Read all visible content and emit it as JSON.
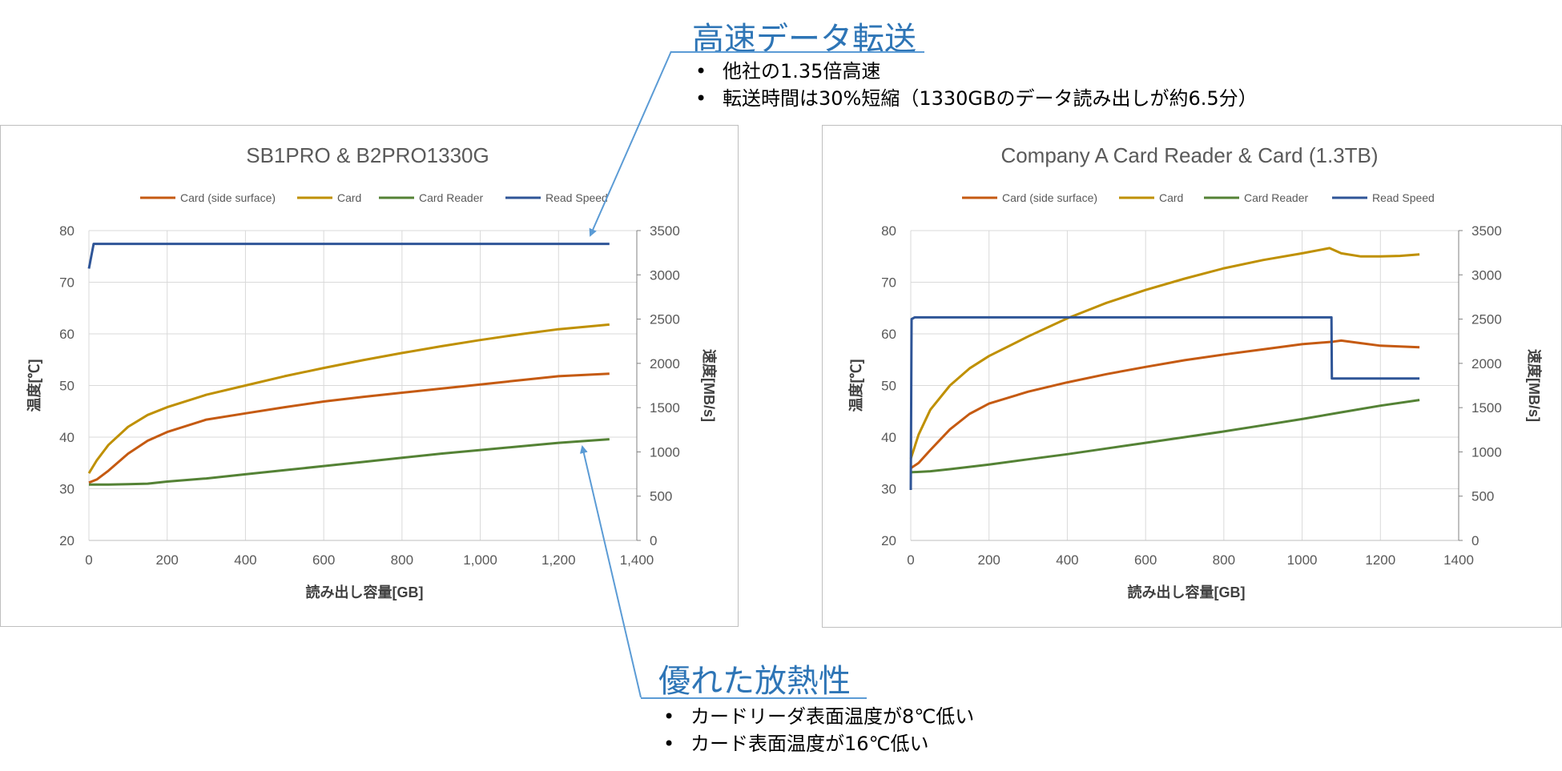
{
  "callouts": [
    {
      "title": "高速データ転送",
      "bullets": [
        "他社の1.35倍高速",
        "転送時間は30%短縮（1330GBのデータ読み出しが約6.5分）"
      ]
    },
    {
      "title": "優れた放熱性",
      "bullets": [
        "カードリーダ表面温度が8℃低い",
        "カード表面温度が16℃低い"
      ]
    }
  ],
  "colors": {
    "card_side": "#c55a11",
    "card": "#bf9000",
    "reader": "#548235",
    "speed": "#2f5597",
    "callout": "#2e75b6",
    "arrow": "#5b9bd5"
  },
  "chart_data": [
    {
      "type": "line",
      "title": "SB1PRO & B2PRO1330G",
      "xlabel": "読み出し容量[GB]",
      "ylabel": "温度[℃]",
      "y2label": "速度[MB/s]",
      "xlim": [
        0,
        1400
      ],
      "ylim": [
        20,
        80
      ],
      "y2lim": [
        0,
        3500
      ],
      "xticks": [
        "0",
        "200",
        "400",
        "600",
        "800",
        "1,000",
        "1,200",
        "1,400"
      ],
      "yticks": [
        "20",
        "30",
        "40",
        "50",
        "60",
        "70",
        "80"
      ],
      "y2ticks": [
        "0",
        "500",
        "1000",
        "1500",
        "2000",
        "2500",
        "3000",
        "3500"
      ],
      "grid": true,
      "legend": "top",
      "series": [
        {
          "name": "Card (side surface)",
          "axis": "left",
          "color": "#c55a11",
          "x": [
            0,
            20,
            50,
            100,
            150,
            200,
            300,
            400,
            500,
            600,
            700,
            800,
            900,
            1000,
            1100,
            1200,
            1330
          ],
          "y": [
            31.2,
            31.8,
            33.5,
            36.8,
            39.3,
            41.0,
            43.4,
            44.6,
            45.8,
            46.9,
            47.8,
            48.6,
            49.4,
            50.2,
            51.0,
            51.8,
            52.3
          ]
        },
        {
          "name": "Card",
          "axis": "left",
          "color": "#bf9000",
          "x": [
            0,
            20,
            50,
            100,
            150,
            200,
            300,
            400,
            500,
            600,
            700,
            800,
            900,
            1000,
            1100,
            1200,
            1330
          ],
          "y": [
            33.0,
            35.5,
            38.5,
            42.0,
            44.3,
            45.8,
            48.2,
            50.0,
            51.8,
            53.4,
            54.9,
            56.3,
            57.6,
            58.8,
            59.9,
            60.9,
            61.8
          ]
        },
        {
          "name": "Card Reader",
          "axis": "left",
          "color": "#548235",
          "x": [
            0,
            50,
            100,
            150,
            200,
            300,
            400,
            500,
            600,
            700,
            800,
            900,
            1000,
            1100,
            1200,
            1330
          ],
          "y": [
            30.8,
            30.8,
            30.9,
            31.0,
            31.4,
            32.0,
            32.8,
            33.6,
            34.4,
            35.2,
            36.0,
            36.8,
            37.5,
            38.2,
            38.9,
            39.6
          ]
        },
        {
          "name": "Read Speed",
          "axis": "right",
          "color": "#2f5597",
          "x": [
            0,
            12,
            20,
            1330
          ],
          "y": [
            3070,
            3350,
            3350,
            3350
          ]
        }
      ]
    },
    {
      "type": "line",
      "title": "Company A Card Reader & Card (1.3TB)",
      "xlabel": "読み出し容量[GB]",
      "ylabel": "温度[℃]",
      "y2label": "速度[MB/s]",
      "xlim": [
        0,
        1400
      ],
      "ylim": [
        20,
        80
      ],
      "y2lim": [
        0,
        3500
      ],
      "xticks": [
        "0",
        "200",
        "400",
        "600",
        "800",
        "1000",
        "1200",
        "1400"
      ],
      "yticks": [
        "20",
        "30",
        "40",
        "50",
        "60",
        "70",
        "80"
      ],
      "y2ticks": [
        "0",
        "500",
        "1000",
        "1500",
        "2000",
        "2500",
        "3000",
        "3500"
      ],
      "grid": true,
      "legend": "top",
      "series": [
        {
          "name": "Card (side surface)",
          "axis": "left",
          "color": "#c55a11",
          "x": [
            0,
            20,
            50,
            100,
            150,
            200,
            300,
            400,
            500,
            600,
            700,
            800,
            900,
            1000,
            1080,
            1100,
            1150,
            1200,
            1300
          ],
          "y": [
            34.0,
            35.0,
            37.5,
            41.5,
            44.5,
            46.5,
            48.8,
            50.6,
            52.2,
            53.6,
            54.9,
            56.0,
            57.0,
            58.0,
            58.5,
            58.7,
            58.2,
            57.7,
            57.4
          ]
        },
        {
          "name": "Card",
          "axis": "left",
          "color": "#bf9000",
          "x": [
            0,
            20,
            50,
            100,
            150,
            200,
            300,
            400,
            500,
            600,
            700,
            800,
            900,
            1000,
            1070,
            1100,
            1150,
            1200,
            1250,
            1300
          ],
          "y": [
            35.8,
            40.5,
            45.3,
            50.0,
            53.3,
            55.7,
            59.5,
            63.0,
            66.0,
            68.5,
            70.7,
            72.7,
            74.3,
            75.6,
            76.6,
            75.6,
            75.0,
            75.0,
            75.1,
            75.4
          ]
        },
        {
          "name": "Card Reader",
          "axis": "left",
          "color": "#548235",
          "x": [
            0,
            50,
            100,
            200,
            300,
            400,
            500,
            600,
            700,
            800,
            900,
            1000,
            1100,
            1200,
            1300
          ],
          "y": [
            33.2,
            33.4,
            33.8,
            34.7,
            35.7,
            36.7,
            37.8,
            38.9,
            40.0,
            41.1,
            42.3,
            43.5,
            44.8,
            46.1,
            47.2
          ]
        },
        {
          "name": "Read Speed",
          "axis": "right",
          "color": "#2f5597",
          "x": [
            0,
            2,
            10,
            1075,
            1076,
            1300
          ],
          "y": [
            570,
            2500,
            2520,
            2520,
            1830,
            1830
          ]
        }
      ]
    }
  ]
}
